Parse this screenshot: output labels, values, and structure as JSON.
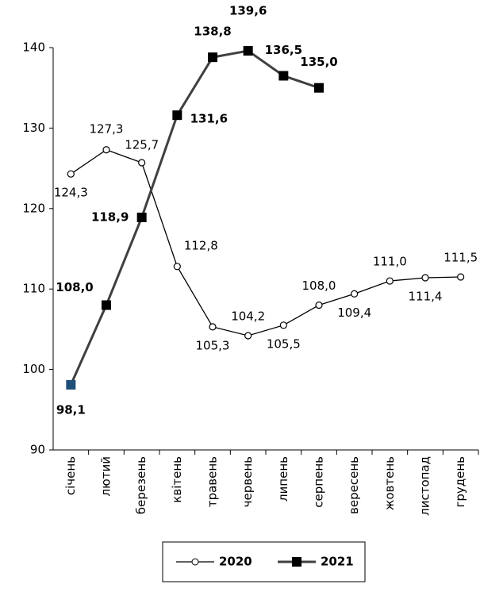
{
  "chart_data": {
    "type": "line",
    "categories": [
      "січень",
      "лютий",
      "березень",
      "квітень",
      "травень",
      "червень",
      "липень",
      "серпень",
      "вересень",
      "жовтень",
      "листопад",
      "грудень"
    ],
    "series": [
      {
        "name": "2020",
        "color": "#000000",
        "marker": "open-circle",
        "values": [
          124.3,
          127.3,
          125.7,
          112.8,
          105.3,
          104.2,
          105.5,
          108.0,
          109.4,
          111.0,
          111.4,
          111.5
        ],
        "value_labels": [
          "124,3",
          "127,3",
          "125,7",
          "112,8",
          "105,3",
          "104,2",
          "105,5",
          "108,0",
          "109,4",
          "111,0",
          "111,4",
          "111,5"
        ]
      },
      {
        "name": "2021",
        "color": "#404040",
        "marker": "filled-square",
        "values": [
          98.1,
          108.0,
          118.9,
          131.6,
          138.8,
          139.6,
          136.5,
          135.0,
          null,
          null,
          null,
          null
        ],
        "value_labels": [
          "98,1",
          "108,0",
          "118,9",
          "131,6",
          "138,8",
          "139,6",
          "136,5",
          "135,0",
          null,
          null,
          null,
          null
        ]
      }
    ],
    "ylim": [
      90,
      140
    ],
    "yticks": [
      90,
      100,
      110,
      120,
      130,
      140
    ],
    "grid": false,
    "legend": "bottom"
  }
}
